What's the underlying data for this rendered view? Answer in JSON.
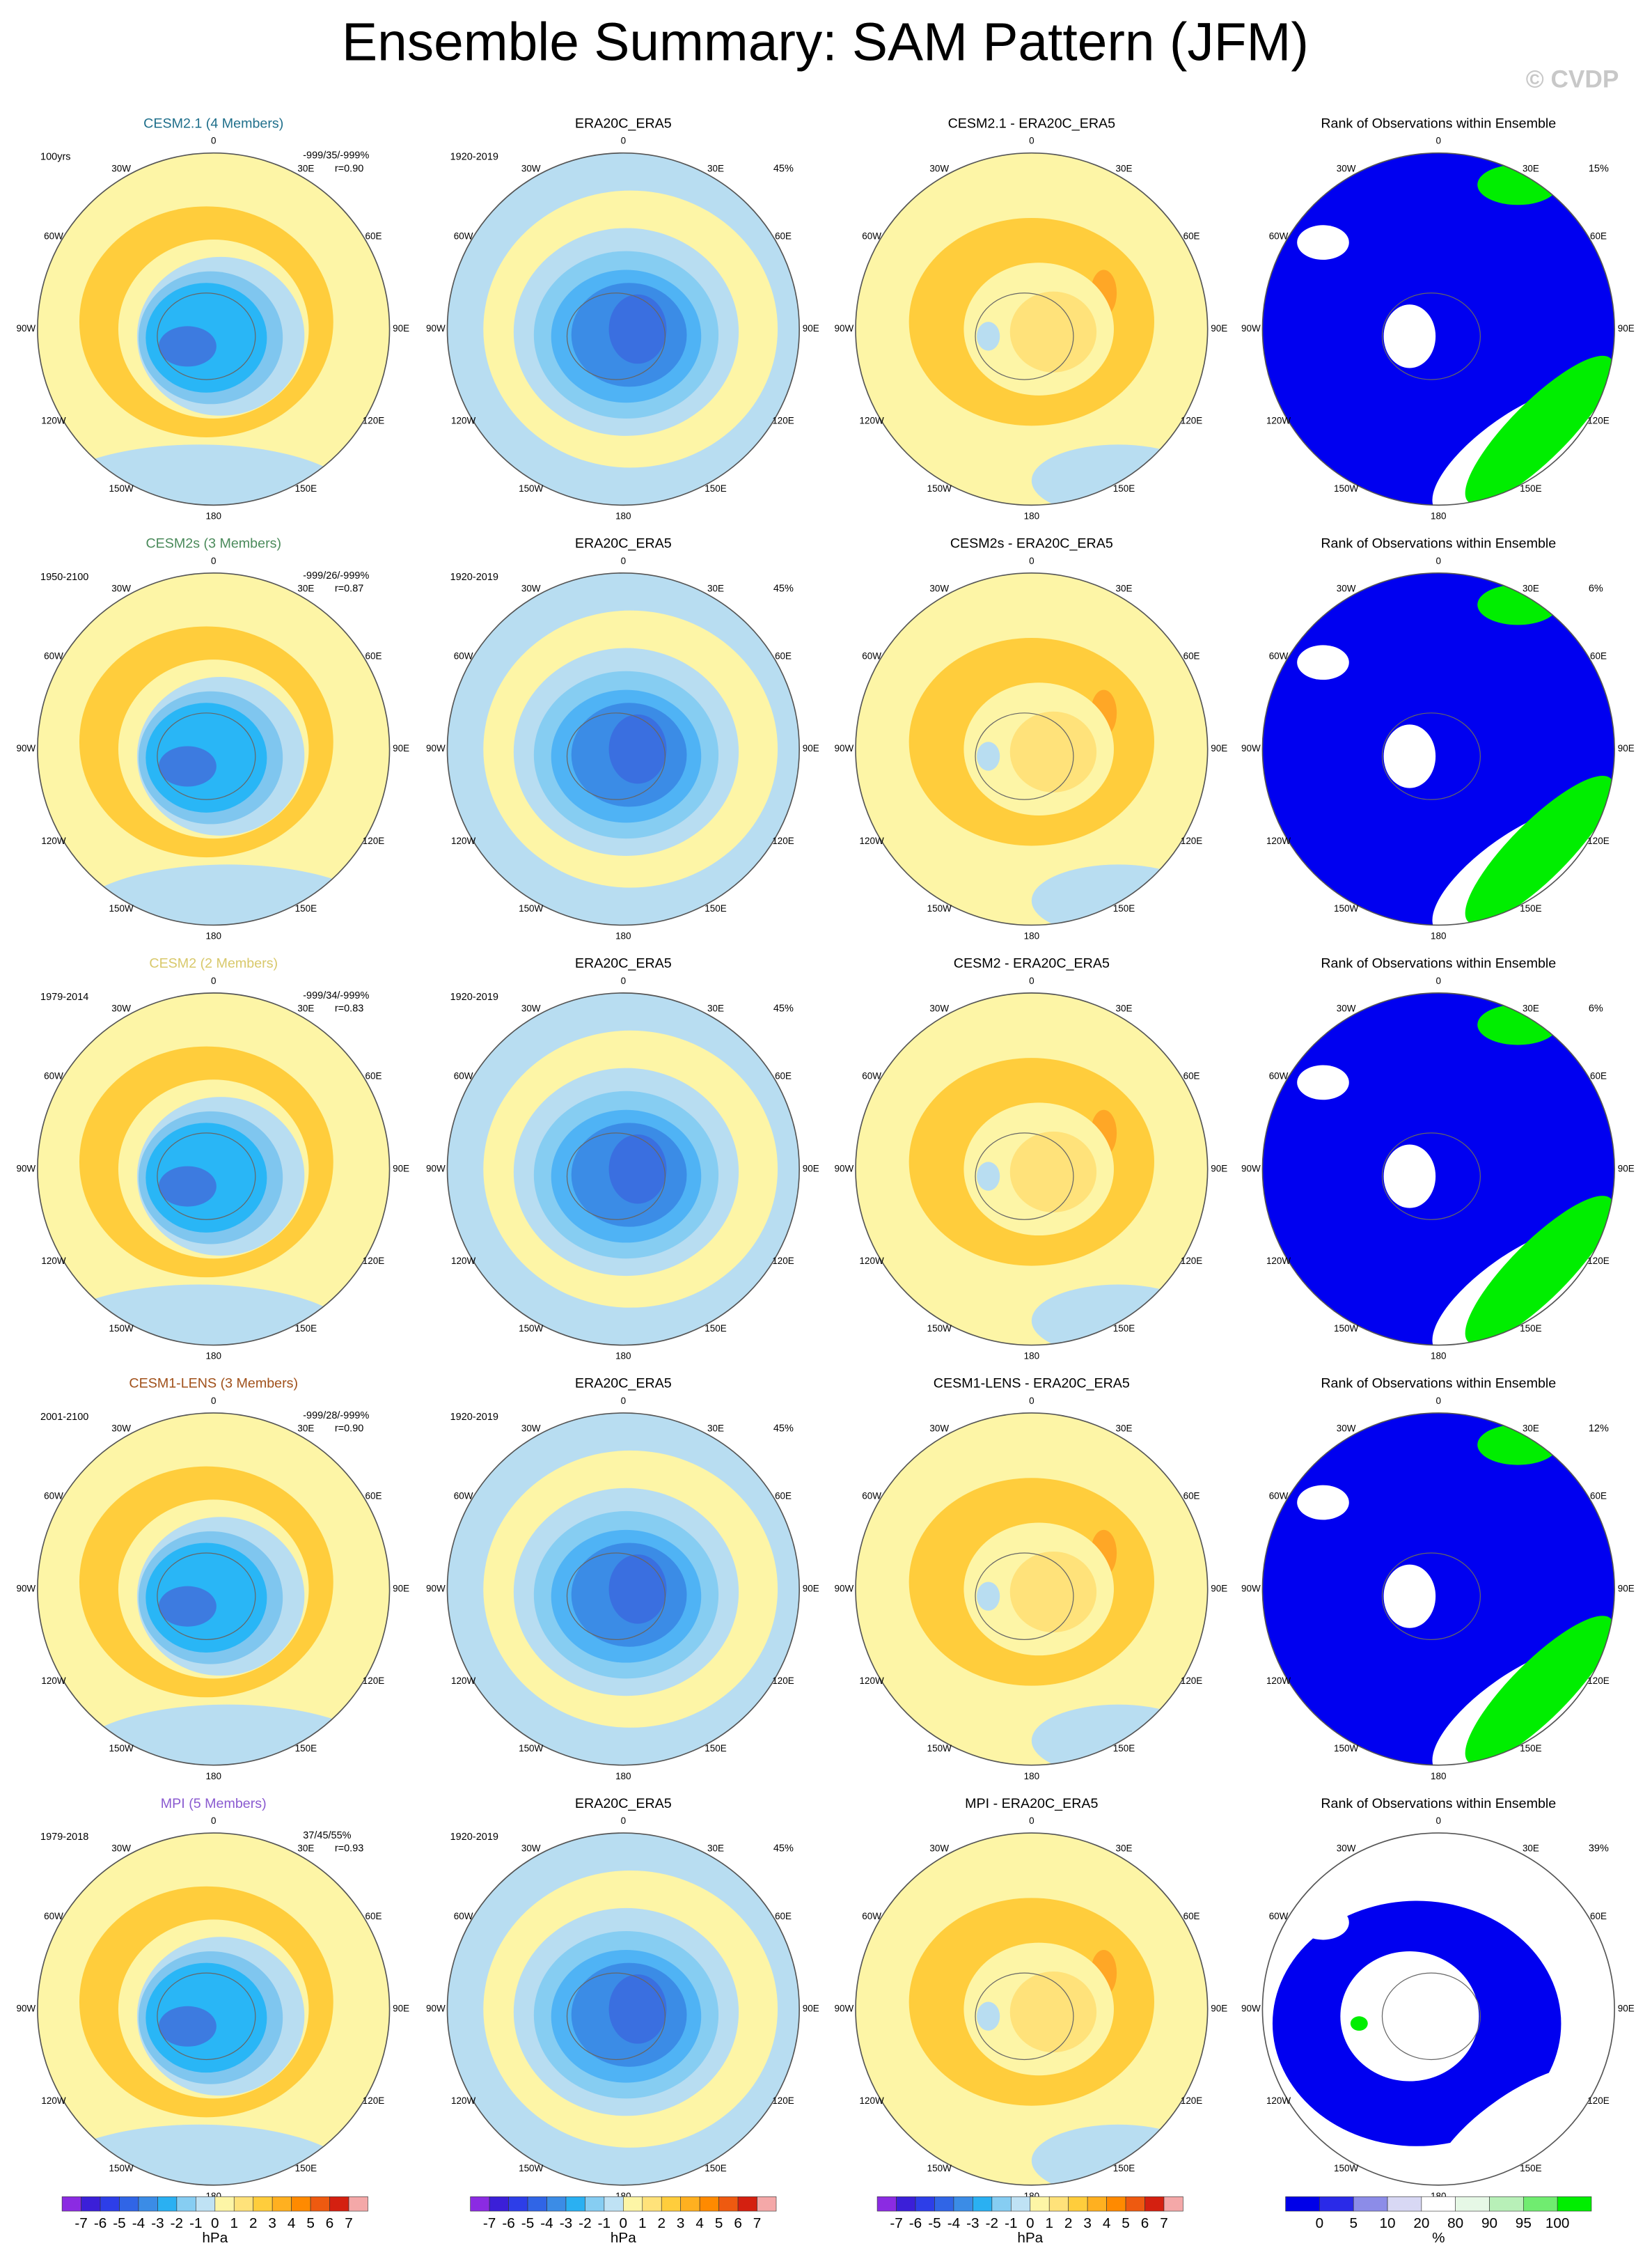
{
  "title": "Ensemble Summary: SAM Pattern (JFM)",
  "watermark": "© CVDP",
  "lon_labels": [
    "0",
    "30E",
    "60E",
    "90E",
    "120E",
    "150E",
    "180",
    "150W",
    "120W",
    "90W",
    "60W",
    "30W"
  ],
  "rows": [
    {
      "model": {
        "title": "CESM2.1 (4 Members)",
        "color": "#1f6f8b",
        "period": "100yrs",
        "stats": "-999/35/-999%",
        "r": "r=0.90"
      },
      "obs": {
        "title": "ERA20C_ERA5",
        "period": "1920-2019",
        "pct": "45%"
      },
      "diff": {
        "title": "CESM2.1 - ERA20C_ERA5"
      },
      "rank": {
        "title": "Rank of Observations within Ensemble",
        "pct": "15%"
      }
    },
    {
      "model": {
        "title": "CESM2s (3 Members)",
        "color": "#4a8a5a",
        "period": "1950-2100",
        "stats": "-999/26/-999%",
        "r": "r=0.87"
      },
      "obs": {
        "title": "ERA20C_ERA5",
        "period": "1920-2019",
        "pct": "45%"
      },
      "diff": {
        "title": "CESM2s - ERA20C_ERA5"
      },
      "rank": {
        "title": "Rank of Observations within Ensemble",
        "pct": "6%"
      }
    },
    {
      "model": {
        "title": "CESM2 (2 Members)",
        "color": "#d8c86a",
        "period": "1979-2014",
        "stats": "-999/34/-999%",
        "r": "r=0.83"
      },
      "obs": {
        "title": "ERA20C_ERA5",
        "period": "1920-2019",
        "pct": "45%"
      },
      "diff": {
        "title": "CESM2 - ERA20C_ERA5"
      },
      "rank": {
        "title": "Rank of Observations within Ensemble",
        "pct": "6%"
      }
    },
    {
      "model": {
        "title": "CESM1-LENS (3 Members)",
        "color": "#a0501a",
        "period": "2001-2100",
        "stats": "-999/28/-999%",
        "r": "r=0.90"
      },
      "obs": {
        "title": "ERA20C_ERA5",
        "period": "1920-2019",
        "pct": "45%"
      },
      "diff": {
        "title": "CESM1-LENS - ERA20C_ERA5"
      },
      "rank": {
        "title": "Rank of Observations within Ensemble",
        "pct": "12%"
      }
    },
    {
      "model": {
        "title": "MPI (5 Members)",
        "color": "#8a5ad0",
        "period": "1979-2018",
        "stats": "37/45/55%",
        "r": "r=0.93"
      },
      "obs": {
        "title": "ERA20C_ERA5",
        "period": "1920-2019",
        "pct": "45%"
      },
      "diff": {
        "title": "MPI - ERA20C_ERA5"
      },
      "rank": {
        "title": "Rank of Observations within Ensemble",
        "pct": "39%"
      }
    }
  ],
  "colorbars": [
    {
      "ticks": [
        -7,
        -6,
        -5,
        -4,
        -3,
        -2,
        -1,
        0,
        1,
        2,
        3,
        4,
        5,
        6,
        7
      ],
      "unit": "hPa",
      "colors": [
        "#8b2be2",
        "#3b1fd8",
        "#2d3ee8",
        "#3065e6",
        "#3b8ce6",
        "#2ab0f2",
        "#86cdf2",
        "#bfe2f4",
        "#fdf5a6",
        "#ffe27a",
        "#ffcd3c",
        "#ffb020",
        "#ff8a00",
        "#ee5a10",
        "#d42010",
        "#f4a8a8"
      ]
    },
    {
      "ticks": [
        -7,
        -6,
        -5,
        -4,
        -3,
        -2,
        -1,
        0,
        1,
        2,
        3,
        4,
        5,
        6,
        7
      ],
      "unit": "hPa",
      "colors": [
        "#8b2be2",
        "#3b1fd8",
        "#2d3ee8",
        "#3065e6",
        "#3b8ce6",
        "#2ab0f2",
        "#86cdf2",
        "#bfe2f4",
        "#fdf5a6",
        "#ffe27a",
        "#ffcd3c",
        "#ffb020",
        "#ff8a00",
        "#ee5a10",
        "#d42010",
        "#f4a8a8"
      ]
    },
    {
      "ticks": [
        -7,
        -6,
        -5,
        -4,
        -3,
        -2,
        -1,
        0,
        1,
        2,
        3,
        4,
        5,
        6,
        7
      ],
      "unit": "hPa",
      "colors": [
        "#8b2be2",
        "#3b1fd8",
        "#2d3ee8",
        "#3065e6",
        "#3b8ce6",
        "#2ab0f2",
        "#86cdf2",
        "#bfe2f4",
        "#fdf5a6",
        "#ffe27a",
        "#ffcd3c",
        "#ffb020",
        "#ff8a00",
        "#ee5a10",
        "#d42010",
        "#f4a8a8"
      ]
    },
    {
      "ticks": [
        0,
        5,
        10,
        20,
        80,
        90,
        95,
        100
      ],
      "unit": "%",
      "colors": [
        "#0000e8",
        "#2a2ae8",
        "#8c8ce8",
        "#d8d8f4",
        "#ffffff",
        "#e6f8e6",
        "#b8f0b8",
        "#70ec70",
        "#00ee00"
      ]
    }
  ]
}
